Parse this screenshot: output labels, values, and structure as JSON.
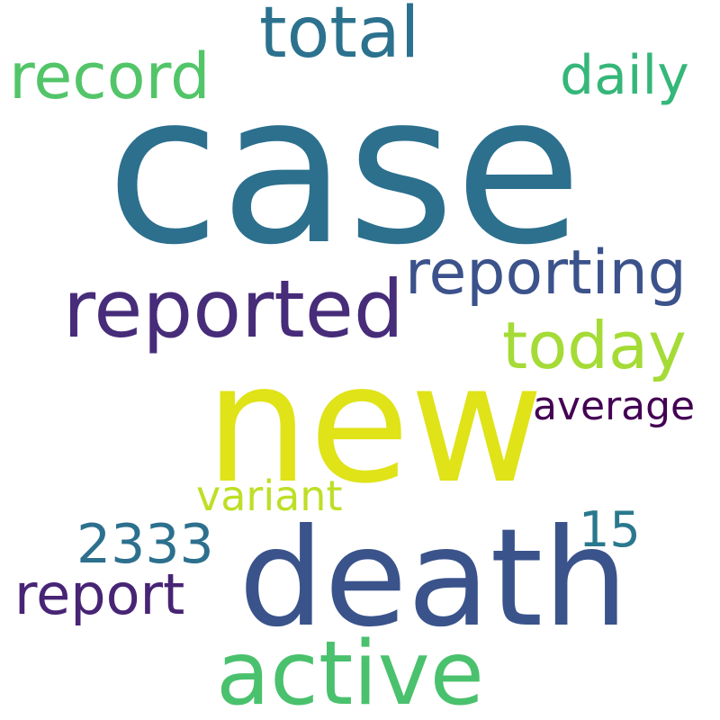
{
  "words": [
    {
      "key": "case",
      "text": "case",
      "color": "#2c708e"
    },
    {
      "key": "new",
      "text": "new",
      "color": "#dfe318"
    },
    {
      "key": "death",
      "text": "death",
      "color": "#3a538b"
    },
    {
      "key": "active",
      "text": "active",
      "color": "#4ac16d"
    },
    {
      "key": "reported",
      "text": "reported",
      "color": "#472c7a"
    },
    {
      "key": "total",
      "text": "total",
      "color": "#2c728e"
    },
    {
      "key": "record",
      "text": "record",
      "color": "#52c569"
    },
    {
      "key": "reporting",
      "text": "reporting",
      "color": "#3b528b"
    },
    {
      "key": "today",
      "text": "today",
      "color": "#a5db36"
    },
    {
      "key": "daily",
      "text": "daily",
      "color": "#35b779"
    },
    {
      "key": "report",
      "text": "report",
      "color": "#482475"
    },
    {
      "key": "2333",
      "text": "2333",
      "color": "#2d708e"
    },
    {
      "key": "variant",
      "text": "variant",
      "color": "#bddf26"
    },
    {
      "key": "15",
      "text": "15",
      "color": "#2a788e"
    },
    {
      "key": "average",
      "text": "average",
      "color": "#440154"
    }
  ]
}
